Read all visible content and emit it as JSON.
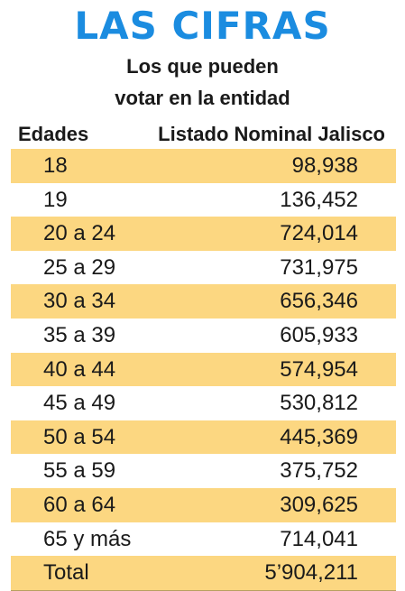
{
  "title": "LAS CIFRAS",
  "subtitle_line1": "Los que pueden",
  "subtitle_line2": "votar en la entidad",
  "headers": {
    "age": "Edades",
    "list": "Listado Nominal Jalisco"
  },
  "colors": {
    "title": "#1b8ce0",
    "row_highlight": "#fcd781"
  },
  "rows": [
    {
      "age": "18",
      "value": "98,938"
    },
    {
      "age": "19",
      "value": "136,452"
    },
    {
      "age": "20 a 24",
      "value": "724,014"
    },
    {
      "age": "25 a 29",
      "value": "731,975"
    },
    {
      "age": "30 a 34",
      "value": "656,346"
    },
    {
      "age": "35 a 39",
      "value": "605,933"
    },
    {
      "age": "40 a 44",
      "value": "574,954"
    },
    {
      "age": "45 a 49",
      "value": "530,812"
    },
    {
      "age": "50 a 54",
      "value": "445,369"
    },
    {
      "age": "55 a 59",
      "value": "375,752"
    },
    {
      "age": "60 a 64",
      "value": "309,625"
    },
    {
      "age": "65 y más",
      "value": "714,041"
    },
    {
      "age": "Total",
      "value": "5’904,211"
    }
  ]
}
